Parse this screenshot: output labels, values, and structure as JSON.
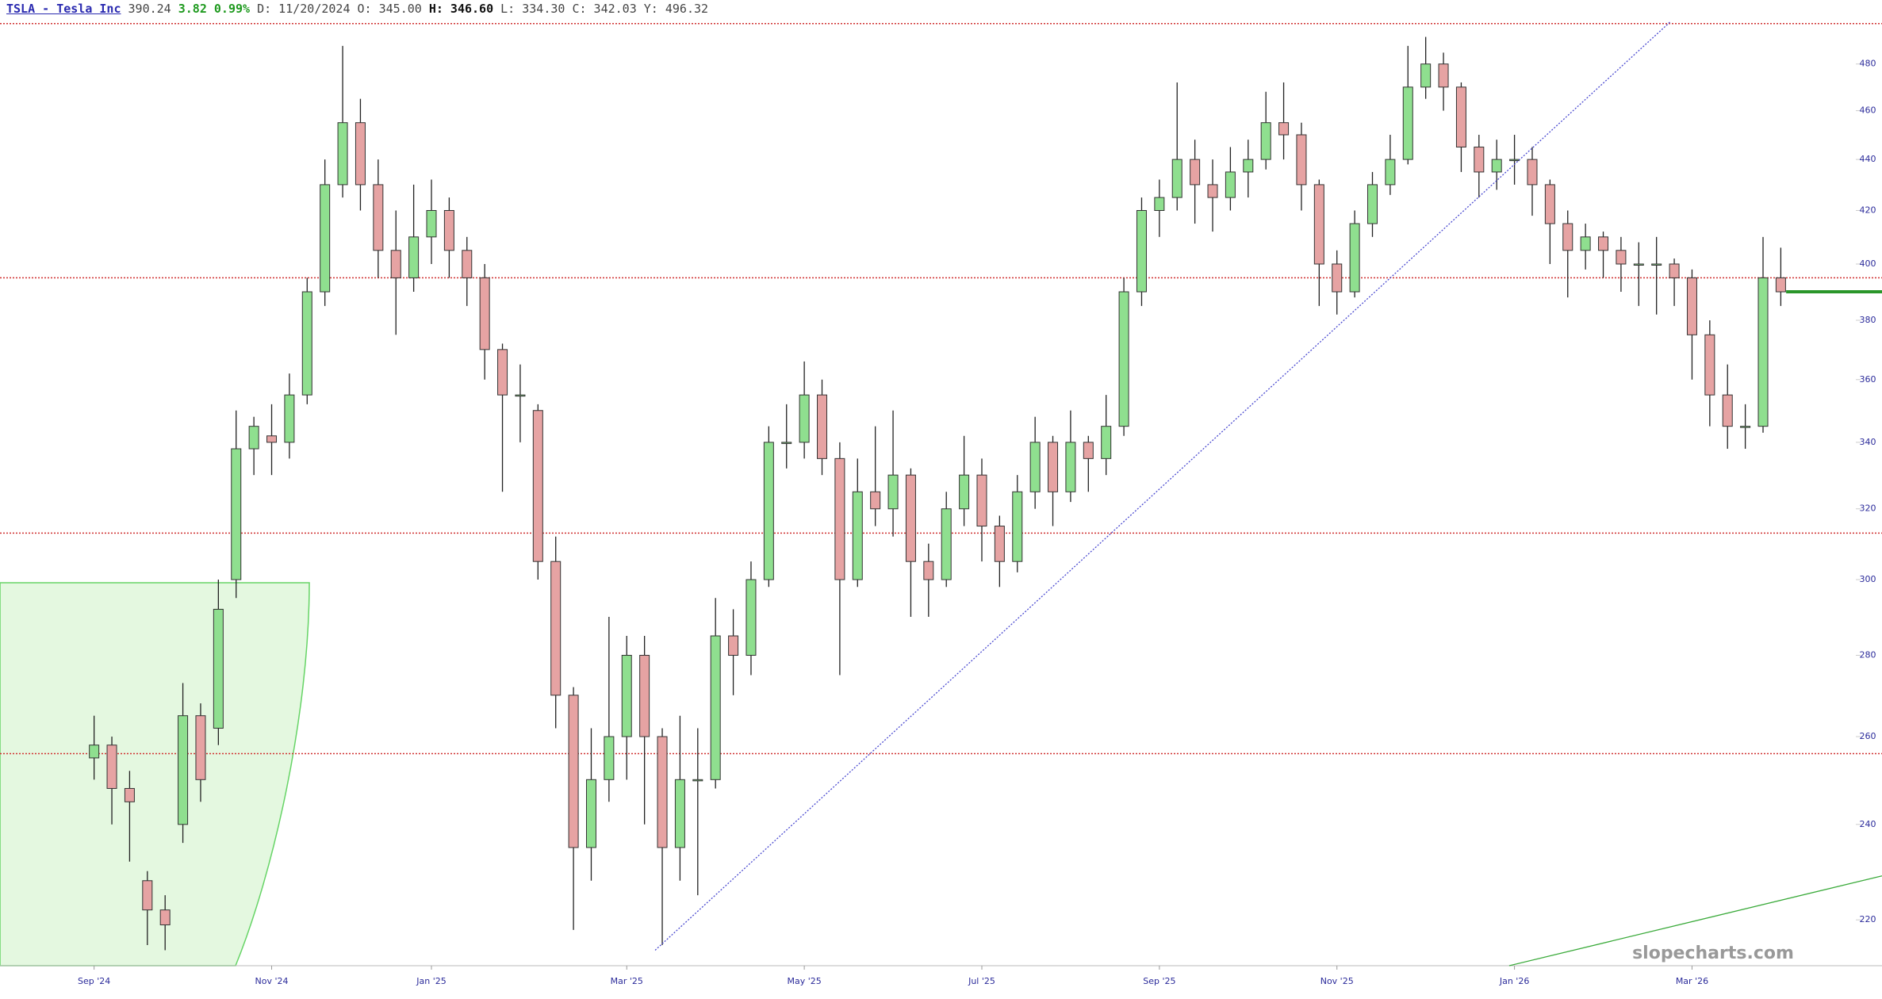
{
  "header": {
    "symbol": "TSLA - Tesla Inc",
    "last": "390.24",
    "change": "3.82",
    "change_pct": "0.99%",
    "date": "D: 11/20/2024",
    "open": "O: 345.00",
    "high": "H: 346.60",
    "low": "L: 334.30",
    "close": "C: 342.03",
    "year_high": "Y: 496.32"
  },
  "chart_data": {
    "type": "candlestick",
    "log_scale": true,
    "up_color": "#8fdf8f",
    "down_color": "#e6a3a3",
    "ohlc": [
      [
        255,
        265,
        250,
        258
      ],
      [
        258,
        260,
        240,
        248
      ],
      [
        248,
        252,
        232,
        245
      ],
      [
        228,
        230,
        215,
        222
      ],
      [
        222,
        225,
        214,
        219
      ],
      [
        240,
        273,
        236,
        265
      ],
      [
        265,
        268,
        245,
        250
      ],
      [
        262,
        300,
        258,
        292
      ],
      [
        300,
        350,
        295,
        338
      ],
      [
        338,
        348,
        330,
        345
      ],
      [
        342,
        352,
        330,
        340
      ],
      [
        340,
        362,
        335,
        355
      ],
      [
        355,
        395,
        352,
        390
      ],
      [
        390,
        440,
        385,
        430
      ],
      [
        430,
        488,
        425,
        455
      ],
      [
        455,
        465,
        420,
        430
      ],
      [
        430,
        440,
        395,
        405
      ],
      [
        405,
        420,
        375,
        395
      ],
      [
        395,
        430,
        390,
        410
      ],
      [
        410,
        432,
        400,
        420
      ],
      [
        420,
        425,
        395,
        405
      ],
      [
        405,
        410,
        385,
        395
      ],
      [
        395,
        400,
        360,
        370
      ],
      [
        370,
        372,
        325,
        355
      ],
      [
        355,
        365,
        340,
        355
      ],
      [
        350,
        352,
        300,
        305
      ],
      [
        305,
        312,
        262,
        270
      ],
      [
        270,
        272,
        218,
        235
      ],
      [
        235,
        262,
        228,
        250
      ],
      [
        250,
        290,
        245,
        260
      ],
      [
        260,
        285,
        250,
        280
      ],
      [
        280,
        285,
        240,
        260
      ],
      [
        260,
        262,
        215,
        235
      ],
      [
        235,
        265,
        228,
        250
      ],
      [
        250,
        262,
        225,
        250
      ],
      [
        250,
        295,
        248,
        285
      ],
      [
        285,
        292,
        270,
        280
      ],
      [
        280,
        305,
        275,
        300
      ],
      [
        300,
        345,
        298,
        340
      ],
      [
        340,
        352,
        332,
        340
      ],
      [
        340,
        366,
        335,
        355
      ],
      [
        355,
        360,
        330,
        335
      ],
      [
        335,
        340,
        275,
        300
      ],
      [
        300,
        335,
        298,
        325
      ],
      [
        325,
        345,
        315,
        320
      ],
      [
        320,
        350,
        312,
        330
      ],
      [
        330,
        332,
        290,
        305
      ],
      [
        305,
        310,
        290,
        300
      ],
      [
        300,
        325,
        298,
        320
      ],
      [
        320,
        342,
        315,
        330
      ],
      [
        330,
        335,
        305,
        315
      ],
      [
        315,
        318,
        298,
        305
      ],
      [
        305,
        330,
        302,
        325
      ],
      [
        325,
        348,
        320,
        340
      ],
      [
        340,
        342,
        315,
        325
      ],
      [
        325,
        350,
        322,
        340
      ],
      [
        340,
        342,
        325,
        335
      ],
      [
        335,
        355,
        330,
        345
      ],
      [
        345,
        395,
        342,
        390
      ],
      [
        390,
        425,
        385,
        420
      ],
      [
        420,
        432,
        410,
        425
      ],
      [
        425,
        472,
        420,
        440
      ],
      [
        440,
        448,
        415,
        430
      ],
      [
        430,
        440,
        412,
        425
      ],
      [
        425,
        445,
        420,
        435
      ],
      [
        435,
        448,
        425,
        440
      ],
      [
        440,
        468,
        436,
        455
      ],
      [
        455,
        472,
        440,
        450
      ],
      [
        450,
        455,
        420,
        430
      ],
      [
        430,
        432,
        385,
        400
      ],
      [
        400,
        405,
        382,
        390
      ],
      [
        390,
        420,
        388,
        415
      ],
      [
        415,
        435,
        410,
        430
      ],
      [
        430,
        450,
        426,
        440
      ],
      [
        440,
        488,
        438,
        470
      ],
      [
        470,
        492,
        465,
        480
      ],
      [
        480,
        485,
        460,
        470
      ],
      [
        470,
        472,
        435,
        445
      ],
      [
        445,
        450,
        425,
        435
      ],
      [
        435,
        448,
        428,
        440
      ],
      [
        440,
        450,
        430,
        440
      ],
      [
        440,
        445,
        418,
        430
      ],
      [
        430,
        432,
        400,
        415
      ],
      [
        415,
        420,
        388,
        405
      ],
      [
        405,
        415,
        398,
        410
      ],
      [
        410,
        412,
        395,
        405
      ],
      [
        405,
        410,
        390,
        400
      ],
      [
        400,
        408,
        385,
        400
      ],
      [
        400,
        410,
        382,
        400
      ],
      [
        400,
        402,
        385,
        395
      ],
      [
        395,
        398,
        360,
        375
      ],
      [
        375,
        380,
        345,
        355
      ],
      [
        355,
        365,
        338,
        345
      ],
      [
        345,
        352,
        338,
        345
      ],
      [
        345,
        410,
        343,
        395
      ],
      [
        395,
        406,
        385,
        390
      ]
    ],
    "xlim": [
      -5.3,
      100.7
    ],
    "ylim": [
      211,
      499
    ],
    "xticks": [
      {
        "value": 0,
        "label": "Sep '24"
      },
      {
        "value": 10,
        "label": "Nov '24"
      },
      {
        "value": 19,
        "label": "Jan '25"
      },
      {
        "value": 30,
        "label": "Mar '25"
      },
      {
        "value": 40,
        "label": "May '25"
      },
      {
        "value": 50,
        "label": "Jul '25"
      },
      {
        "value": 60,
        "label": "Sep '25"
      },
      {
        "value": 70,
        "label": "Nov '25"
      },
      {
        "value": 80,
        "label": "Jan '26"
      },
      {
        "value": 90,
        "label": "Mar '26"
      }
    ],
    "yticks": [
      220,
      240,
      260,
      280,
      300,
      320,
      340,
      360,
      380,
      400,
      420,
      440,
      460,
      480
    ],
    "horizontal_lines": [
      {
        "value": 498,
        "color": "#d03030"
      },
      {
        "value": 395,
        "color": "#d03030"
      },
      {
        "value": 313,
        "color": "#d03030"
      },
      {
        "value": 256,
        "color": "#d03030"
      }
    ],
    "trendlines": [
      {
        "from": [
          31.6,
          214
        ],
        "to": [
          88.8,
          499
        ],
        "color": "#4a4ad0"
      },
      {
        "from": [
          79.7,
          211
        ],
        "to": [
          100.7,
          229
        ],
        "color": "#3aaa3a"
      }
    ],
    "price_line": {
      "from": 95.3,
      "value": 390,
      "color": "#2a962a"
    }
  },
  "watermark": "slopecharts.com"
}
